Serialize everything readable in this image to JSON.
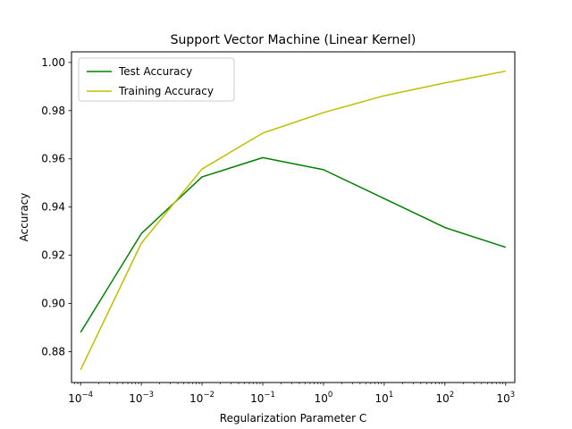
{
  "chart_data": {
    "type": "line",
    "title": "Support Vector Machine (Linear Kernel)",
    "xlabel": "Regularization Parameter C",
    "ylabel": "Accuracy",
    "xscale": "log",
    "x": [
      0.0001,
      0.001,
      0.01,
      0.1,
      1,
      10,
      100,
      1000
    ],
    "xticks": [
      {
        "value": 0.0001,
        "base": "10",
        "exp": "−4"
      },
      {
        "value": 0.001,
        "base": "10",
        "exp": "−3"
      },
      {
        "value": 0.01,
        "base": "10",
        "exp": "−2"
      },
      {
        "value": 0.1,
        "base": "10",
        "exp": "−1"
      },
      {
        "value": 1,
        "base": "10",
        "exp": "0"
      },
      {
        "value": 10,
        "base": "10",
        "exp": "1"
      },
      {
        "value": 100,
        "base": "10",
        "exp": "2"
      },
      {
        "value": 1000,
        "base": "10",
        "exp": "3"
      }
    ],
    "yticks": [
      "0.88",
      "0.90",
      "0.92",
      "0.94",
      "0.96",
      "0.98",
      "1.00"
    ],
    "ylim": [
      0.8672,
      1.0044
    ],
    "xlim": [
      7.08e-05,
      1413
    ],
    "grid": false,
    "legend_position": "top-left",
    "series": [
      {
        "name": "Test Accuracy",
        "color": "#008000",
        "values": [
          0.888,
          0.929,
          0.9525,
          0.9605,
          0.9555,
          0.9435,
          0.9315,
          0.9233
        ]
      },
      {
        "name": "Training Accuracy",
        "color": "#bfbf00",
        "values": [
          0.8725,
          0.925,
          0.9558,
          0.9707,
          0.9792,
          0.9862,
          0.9915,
          0.9964
        ]
      }
    ]
  }
}
